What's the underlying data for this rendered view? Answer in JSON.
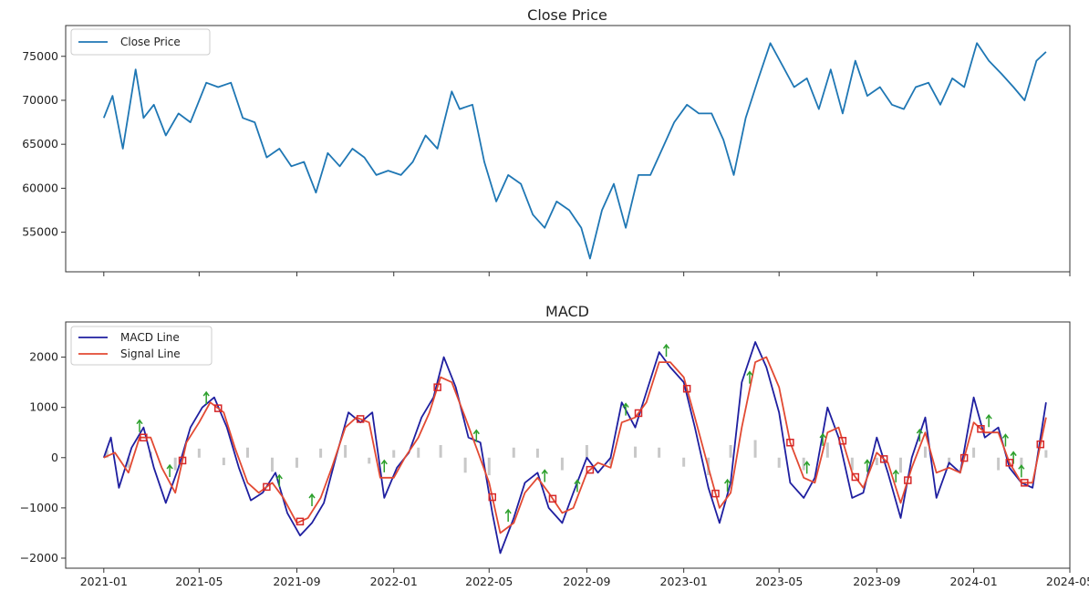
{
  "chart_data": [
    {
      "type": "line",
      "title": "Close Price",
      "xlabel": "",
      "ylabel": "",
      "xlim": [
        "2020-11-14",
        "2024-05-01"
      ],
      "ylim": [
        50500,
        78500
      ],
      "yticks": [
        55000,
        60000,
        65000,
        70000,
        75000
      ],
      "grid": false,
      "legend_position": "top-left",
      "series": [
        {
          "name": "Close Price",
          "color": "#1f77b4",
          "x": [
            "2021-01-01",
            "2021-01-12",
            "2021-01-25",
            "2021-02-10",
            "2021-02-20",
            "2021-03-05",
            "2021-03-20",
            "2021-04-05",
            "2021-04-20",
            "2021-05-10",
            "2021-05-25",
            "2021-06-10",
            "2021-06-25",
            "2021-07-10",
            "2021-07-25",
            "2021-08-10",
            "2021-08-25",
            "2021-09-10",
            "2021-09-25",
            "2021-10-10",
            "2021-10-25",
            "2021-11-10",
            "2021-11-25",
            "2021-12-10",
            "2021-12-25",
            "2022-01-10",
            "2022-01-25",
            "2022-02-10",
            "2022-02-25",
            "2022-03-15",
            "2022-03-25",
            "2022-04-10",
            "2022-04-25",
            "2022-05-10",
            "2022-05-25",
            "2022-06-10",
            "2022-06-25",
            "2022-07-10",
            "2022-07-25",
            "2022-08-10",
            "2022-08-25",
            "2022-09-05",
            "2022-09-20",
            "2022-10-05",
            "2022-10-20",
            "2022-11-05",
            "2022-11-20",
            "2022-12-05",
            "2022-12-20",
            "2023-01-05",
            "2023-01-20",
            "2023-02-05",
            "2023-02-20",
            "2023-03-05",
            "2023-03-20",
            "2023-04-05",
            "2023-04-20",
            "2023-05-05",
            "2023-05-20",
            "2023-06-05",
            "2023-06-20",
            "2023-07-05",
            "2023-07-20",
            "2023-08-05",
            "2023-08-20",
            "2023-09-05",
            "2023-09-20",
            "2023-10-05",
            "2023-10-20",
            "2023-11-05",
            "2023-11-20",
            "2023-12-05",
            "2023-12-20",
            "2024-01-05",
            "2024-01-20",
            "2024-02-05",
            "2024-02-20",
            "2024-03-05",
            "2024-03-20",
            "2024-04-01"
          ],
          "y": [
            68000,
            70500,
            64500,
            73500,
            68000,
            69500,
            66000,
            68500,
            67500,
            72000,
            71500,
            72000,
            68000,
            67500,
            63500,
            64500,
            62500,
            63000,
            59500,
            64000,
            62500,
            64500,
            63500,
            61500,
            62000,
            61500,
            63000,
            66000,
            64500,
            71000,
            69000,
            69500,
            63000,
            58500,
            61500,
            60500,
            57000,
            55500,
            58500,
            57500,
            55500,
            52000,
            57500,
            60500,
            55500,
            61500,
            61500,
            64500,
            67500,
            69500,
            68500,
            68500,
            65500,
            61500,
            68000,
            72500,
            76500,
            74000,
            71500,
            72500,
            69000,
            73500,
            68500,
            74500,
            70500,
            71500,
            69500,
            69000,
            71500,
            72000,
            69500,
            72500,
            71500,
            76500,
            74500,
            73000,
            71500,
            70000,
            74500,
            75500
          ]
        }
      ]
    },
    {
      "type": "line",
      "title": "MACD",
      "xlabel": "",
      "ylabel": "",
      "xlim": [
        "2020-11-14",
        "2024-05-01"
      ],
      "ylim": [
        -2200,
        2700
      ],
      "yticks": [
        -2000,
        -1000,
        0,
        1000,
        2000
      ],
      "xticks": [
        "2021-01",
        "2021-05",
        "2021-09",
        "2022-01",
        "2022-05",
        "2022-09",
        "2023-01",
        "2023-05",
        "2023-09",
        "2024-01",
        "2024-05"
      ],
      "grid": false,
      "legend_position": "top-left",
      "series": [
        {
          "name": "MACD Line",
          "color": "#1f1fa0",
          "x": [
            "2021-01-01",
            "2021-01-10",
            "2021-01-20",
            "2021-02-05",
            "2021-02-20",
            "2021-03-05",
            "2021-03-20",
            "2021-04-05",
            "2021-04-20",
            "2021-05-05",
            "2021-05-20",
            "2021-06-05",
            "2021-06-20",
            "2021-07-05",
            "2021-07-20",
            "2021-08-05",
            "2021-08-20",
            "2021-09-05",
            "2021-09-20",
            "2021-10-05",
            "2021-10-20",
            "2021-11-05",
            "2021-11-20",
            "2021-12-05",
            "2021-12-20",
            "2022-01-05",
            "2022-01-20",
            "2022-02-05",
            "2022-02-20",
            "2022-03-05",
            "2022-03-20",
            "2022-04-05",
            "2022-04-20",
            "2022-05-05",
            "2022-05-15",
            "2022-06-01",
            "2022-06-15",
            "2022-07-01",
            "2022-07-15",
            "2022-08-01",
            "2022-08-15",
            "2022-09-01",
            "2022-09-15",
            "2022-10-01",
            "2022-10-15",
            "2022-11-01",
            "2022-11-15",
            "2022-12-01",
            "2022-12-15",
            "2023-01-01",
            "2023-01-15",
            "2023-02-01",
            "2023-02-15",
            "2023-03-01",
            "2023-03-15",
            "2023-04-01",
            "2023-04-15",
            "2023-05-01",
            "2023-05-15",
            "2023-06-01",
            "2023-06-15",
            "2023-07-01",
            "2023-07-15",
            "2023-08-01",
            "2023-08-15",
            "2023-09-01",
            "2023-09-15",
            "2023-10-01",
            "2023-10-15",
            "2023-11-01",
            "2023-11-15",
            "2023-12-01",
            "2023-12-15",
            "2024-01-01",
            "2024-01-15",
            "2024-02-01",
            "2024-02-15",
            "2024-03-01",
            "2024-03-15",
            "2024-04-01"
          ],
          "y": [
            0,
            400,
            -600,
            200,
            600,
            -200,
            -900,
            -200,
            600,
            1000,
            1200,
            600,
            -200,
            -850,
            -700,
            -300,
            -1100,
            -1550,
            -1300,
            -900,
            0,
            900,
            700,
            900,
            -800,
            -200,
            100,
            800,
            1200,
            2000,
            1400,
            400,
            300,
            -1100,
            -1900,
            -1200,
            -500,
            -300,
            -1000,
            -1300,
            -700,
            0,
            -300,
            0,
            1100,
            600,
            1300,
            2100,
            1800,
            1500,
            600,
            -600,
            -1300,
            -500,
            1500,
            2300,
            1800,
            900,
            -500,
            -800,
            -400,
            1000,
            400,
            -800,
            -700,
            400,
            -300,
            -1200,
            0,
            800,
            -800,
            -100,
            -300,
            1200,
            400,
            600,
            -200,
            -500,
            -600,
            1100
          ]
        },
        {
          "name": "Signal Line",
          "color": "#e24a33",
          "x": [
            "2021-01-01",
            "2021-01-15",
            "2021-02-01",
            "2021-02-15",
            "2021-03-01",
            "2021-03-15",
            "2021-04-01",
            "2021-04-15",
            "2021-05-01",
            "2021-05-15",
            "2021-06-01",
            "2021-06-15",
            "2021-07-01",
            "2021-07-15",
            "2021-08-01",
            "2021-08-15",
            "2021-09-01",
            "2021-09-15",
            "2021-10-01",
            "2021-10-15",
            "2021-11-01",
            "2021-11-15",
            "2021-12-01",
            "2021-12-15",
            "2022-01-01",
            "2022-01-15",
            "2022-02-01",
            "2022-02-15",
            "2022-03-01",
            "2022-03-15",
            "2022-04-01",
            "2022-04-15",
            "2022-05-01",
            "2022-05-15",
            "2022-06-01",
            "2022-06-15",
            "2022-07-01",
            "2022-07-15",
            "2022-08-01",
            "2022-08-15",
            "2022-09-01",
            "2022-09-15",
            "2022-10-01",
            "2022-10-15",
            "2022-11-01",
            "2022-11-15",
            "2022-12-01",
            "2022-12-15",
            "2023-01-01",
            "2023-01-15",
            "2023-02-01",
            "2023-02-15",
            "2023-03-01",
            "2023-03-15",
            "2023-04-01",
            "2023-04-15",
            "2023-05-01",
            "2023-05-15",
            "2023-06-01",
            "2023-06-15",
            "2023-07-01",
            "2023-07-15",
            "2023-08-01",
            "2023-08-15",
            "2023-09-01",
            "2023-09-15",
            "2023-10-01",
            "2023-10-15",
            "2023-11-01",
            "2023-11-15",
            "2023-12-01",
            "2023-12-15",
            "2024-01-01",
            "2024-01-15",
            "2024-02-01",
            "2024-02-15",
            "2024-03-01",
            "2024-03-15",
            "2024-04-01"
          ],
          "y": [
            0,
            100,
            -300,
            400,
            400,
            -200,
            -700,
            300,
            700,
            1100,
            900,
            200,
            -500,
            -700,
            -500,
            -800,
            -1300,
            -1200,
            -800,
            -200,
            600,
            800,
            700,
            -400,
            -400,
            0,
            400,
            900,
            1600,
            1500,
            800,
            200,
            -500,
            -1500,
            -1300,
            -700,
            -400,
            -700,
            -1100,
            -1000,
            -300,
            -100,
            -200,
            700,
            800,
            1100,
            1900,
            1900,
            1600,
            800,
            -200,
            -1000,
            -700,
            600,
            1900,
            2000,
            1400,
            300,
            -400,
            -500,
            500,
            600,
            -300,
            -600,
            100,
            -100,
            -900,
            -200,
            500,
            -300,
            -200,
            -300,
            700,
            500,
            500,
            -100,
            -500,
            -500,
            800
          ]
        },
        {
          "name": "",
          "type": "bar",
          "color": "#c8c8c8",
          "x": [
            "2021-01-05",
            "2021-02-01",
            "2021-03-01",
            "2021-04-01",
            "2021-05-01",
            "2021-06-01",
            "2021-07-01",
            "2021-08-01",
            "2021-09-01",
            "2021-10-01",
            "2021-11-01",
            "2021-12-01",
            "2022-01-01",
            "2022-02-01",
            "2022-03-01",
            "2022-04-01",
            "2022-05-01",
            "2022-06-01",
            "2022-07-01",
            "2022-08-01",
            "2022-09-01",
            "2022-10-01",
            "2022-11-01",
            "2022-12-01",
            "2023-01-01",
            "2023-02-01",
            "2023-03-01",
            "2023-04-01",
            "2023-05-01",
            "2023-06-01",
            "2023-07-01",
            "2023-08-01",
            "2023-09-01",
            "2023-10-01",
            "2023-11-01",
            "2023-12-01",
            "2024-01-01",
            "2024-02-01",
            "2024-03-01",
            "2024-04-01"
          ],
          "y": [
            150,
            -200,
            120,
            -250,
            180,
            -150,
            200,
            -280,
            -200,
            180,
            250,
            -120,
            150,
            200,
            250,
            -300,
            -350,
            200,
            180,
            -250,
            250,
            -150,
            220,
            200,
            -180,
            -350,
            250,
            350,
            -200,
            -250,
            300,
            -250,
            -150,
            -300,
            220,
            -150,
            200,
            -250,
            -200,
            150
          ]
        }
      ],
      "buy_signal_x": [
        "2021-02-15",
        "2021-03-25",
        "2021-05-10",
        "2021-08-10",
        "2021-09-20",
        "2021-12-20",
        "2022-04-15",
        "2022-05-25",
        "2022-07-10",
        "2022-08-20",
        "2022-10-20",
        "2022-12-10",
        "2023-02-25",
        "2023-03-25",
        "2023-06-05",
        "2023-06-25",
        "2023-08-20",
        "2023-09-25",
        "2023-10-25",
        "2024-01-20",
        "2024-02-10",
        "2024-02-20",
        "2024-03-01"
      ],
      "sell_signal_x": [
        "2021-02-20",
        "2021-04-10",
        "2021-05-25",
        "2021-07-25",
        "2021-09-05",
        "2021-11-20",
        "2022-02-25",
        "2022-05-05",
        "2022-07-20",
        "2022-09-05",
        "2022-11-05",
        "2023-01-05",
        "2023-02-10",
        "2023-05-15",
        "2023-07-20",
        "2023-08-05",
        "2023-09-10",
        "2023-10-10",
        "2023-12-20",
        "2024-01-10",
        "2024-02-15",
        "2024-03-05",
        "2024-03-25"
      ]
    }
  ]
}
